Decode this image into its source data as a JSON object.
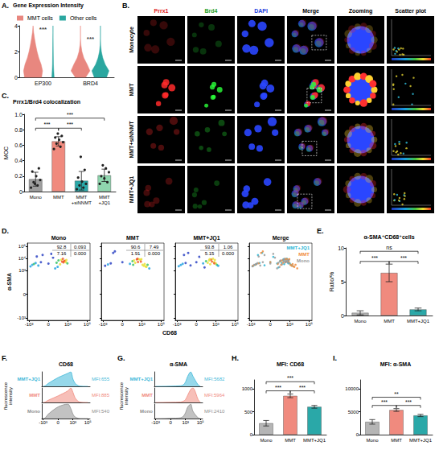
{
  "chart_data": [
    {
      "type": "violin",
      "panel": "A.",
      "title": "Gene Expression Intensity",
      "categories": [
        "EP300",
        "BRD4"
      ],
      "ylim": [
        0,
        4
      ],
      "yticks": [
        0,
        2,
        4
      ],
      "y_grid": [
        0,
        0.5,
        1,
        1.5,
        2,
        2.5,
        3,
        3.5,
        4
      ],
      "legend": "top",
      "series": [
        {
          "name": "MMT cells",
          "color": "#E8877F",
          "density": [
            [
              0.9,
              1.0,
              0.85,
              0.6,
              0.42,
              0.28,
              0.16,
              0.06,
              0
            ],
            [
              0.55,
              1.0,
              0.7,
              0.35,
              0.15,
              0.05,
              0,
              0,
              0
            ]
          ]
        },
        {
          "name": "Other cells",
          "color": "#2BA7A0",
          "density": [
            [
              0.12,
              0.08,
              0.05,
              0.04,
              0.03,
              0.02,
              0.01,
              0,
              0
            ],
            [
              0.65,
              0.9,
              0.5,
              0.25,
              0.1,
              0.03,
              0,
              0,
              0
            ]
          ]
        }
      ],
      "annotations": [
        {
          "category": "EP300",
          "y": 3.75,
          "text": "***"
        },
        {
          "category": "BRD4",
          "y": 3.0,
          "text": "***"
        }
      ]
    },
    {
      "type": "bar",
      "panel": "C.",
      "title": "Prrx1/Brd4 colocalization",
      "y_label": "MOC",
      "categories": [
        "Mono",
        "MMT",
        "MMT +siNNMT",
        "MMT +JQ1"
      ],
      "values": [
        0.16,
        0.65,
        0.14,
        0.21
      ],
      "errors": [
        0.09,
        0.06,
        0.12,
        0.08
      ],
      "colors": [
        "#9E9E9E",
        "#F08A7E",
        "#2AA8A8",
        "#8FD6AE"
      ],
      "points": [
        [
          0.05,
          0.08,
          0.12,
          0.15,
          0.2,
          0.26,
          0.3,
          0.1
        ],
        [
          0.55,
          0.58,
          0.62,
          0.64,
          0.67,
          0.7,
          0.72,
          0.75
        ],
        [
          0.03,
          0.05,
          0.08,
          0.1,
          0.13,
          0.18,
          0.28,
          0.45
        ],
        [
          0.1,
          0.12,
          0.17,
          0.2,
          0.25,
          0.3,
          0.34
        ]
      ],
      "ylim": [
        0,
        1
      ],
      "yticks": [
        0,
        0.2,
        0.4,
        0.6,
        0.8,
        {
          "value": 1,
          "label": "1.0"
        }
      ],
      "brackets": [
        {
          "from": "Mono",
          "to": "MMT",
          "y": 0.82,
          "label": "***"
        },
        {
          "from": "MMT",
          "to": "MMT +siNNMT",
          "y": 0.82,
          "label": "***"
        },
        {
          "from": "Mono",
          "to": "MMT +JQ1",
          "y": 0.95,
          "label": "***"
        }
      ]
    },
    {
      "type": "flow_scatter",
      "panel": "D.",
      "x_label": "CD68",
      "y_label": "α-SMA",
      "xlim": [
        -1500,
        200000
      ],
      "ylim": [
        -1500,
        200000
      ],
      "xticks": [
        {
          "value": -1000,
          "label": "-10³"
        },
        0,
        {
          "value": 1000,
          "label": "10³"
        },
        {
          "value": 100000,
          "label": "10⁵"
        }
      ],
      "yticks": [
        {
          "value": -1000,
          "label": "-10³"
        },
        0,
        {
          "value": 1000,
          "label": "10³"
        },
        {
          "value": 10000,
          "label": "10⁴"
        },
        {
          "value": 100000,
          "label": "10⁵"
        }
      ],
      "plots": [
        {
          "title": "Mono",
          "quadrants": {
            "values": [
              92.8,
              0.093,
              7.16,
              0
            ],
            "value_labels": [
              "92.8",
              "0.093",
              "7.16",
              "0.000"
            ]
          },
          "x": [
            -700,
            -450,
            -300,
            -200,
            -100,
            -50,
            0,
            20,
            60,
            100,
            150,
            200,
            250,
            300,
            350,
            400,
            500,
            600,
            700,
            900,
            -30,
            80,
            -150,
            10,
            40
          ],
          "y": [
            2200,
            3000,
            3500,
            4200,
            2600,
            5000,
            3800,
            12000,
            4500,
            7000,
            3300,
            8000,
            5500,
            9500,
            4800,
            6000,
            6500,
            5000,
            7500,
            4000,
            20000,
            2000,
            15000,
            25000,
            1500
          ]
        },
        {
          "title": "MMT",
          "tick_labels": "x",
          "quadrants": {
            "values": [
              90.6,
              7.49,
              1.91,
              0
            ],
            "value_labels": [
              "90.6",
              "7.49",
              "1.91",
              "0.000"
            ]
          },
          "x": [
            -600,
            -300,
            -150,
            0,
            50,
            100,
            150,
            200,
            300,
            400,
            500,
            700,
            900,
            1200,
            1600,
            2000,
            3000,
            4000,
            6000,
            -50,
            120,
            -80,
            800,
            2500,
            350
          ],
          "y": [
            2500,
            3200,
            4000,
            5000,
            3600,
            6000,
            7000,
            4500,
            8500,
            5200,
            9000,
            8000,
            9000,
            3000,
            2500,
            3500,
            2000,
            3000,
            1500,
            40000,
            3000,
            30000,
            5500,
            2200,
            9500
          ]
        },
        {
          "title": "MMT+JQ1",
          "tick_labels": "x",
          "quadrants": {
            "values": [
              93.8,
              1.06,
              5.15,
              0
            ],
            "value_labels": [
              "93.8",
              "1.06",
              "5.15",
              "0.000"
            ]
          },
          "x": [
            -650,
            -400,
            -250,
            -120,
            -30,
            0,
            40,
            90,
            140,
            200,
            260,
            320,
            400,
            500,
            650,
            800,
            1000,
            1300,
            -60,
            60,
            -180,
            230,
            700,
            1800,
            10
          ],
          "y": [
            2300,
            2900,
            3600,
            4300,
            2700,
            5000,
            3900,
            6000,
            4400,
            7200,
            3400,
            8200,
            5600,
            9800,
            5000,
            7500,
            4000,
            3000,
            30000,
            1800,
            20000,
            9000,
            4000,
            2500,
            14000
          ]
        }
      ],
      "merge": {
        "title": "Merge",
        "tick_labels": "x",
        "legend": "top-right",
        "series": [
          {
            "name": "MMT+JQ1",
            "color": "#29B6D6"
          },
          {
            "name": "MMT",
            "color": "#F08C3C"
          },
          {
            "name": "Mono",
            "color": "#9A9A9A"
          }
        ]
      }
    },
    {
      "type": "bar",
      "panel": "E.",
      "title": "α-SMA⁺CD68⁺cells",
      "y_label": "Ratio/%",
      "categories": [
        "Mono",
        "MMT",
        "MMT+JQ1"
      ],
      "values": [
        0.4,
        6.3,
        0.9
      ],
      "errors": [
        0.3,
        1.3,
        0.2
      ],
      "colors": [
        "#B5B5B5",
        "#F08A7E",
        "#2AA8A8"
      ],
      "ylim": [
        0,
        10
      ],
      "yticks": [
        0,
        5,
        10
      ],
      "brackets": [
        {
          "from": "Mono",
          "to": "MMT",
          "y": 8.0,
          "label": "***"
        },
        {
          "from": "MMT",
          "to": "MMT+JQ1",
          "y": 8.0,
          "label": "***"
        },
        {
          "from": "Mono",
          "to": "MMT+JQ1",
          "y": 9.5,
          "label": "ns"
        }
      ]
    },
    {
      "type": "histogram",
      "panel": "F.",
      "title": "CD68",
      "y_label": "fluorescence intensity",
      "tick_labels": "x",
      "x": [
        -1000,
        -500,
        -200,
        0,
        200,
        500,
        1000,
        2000,
        5000,
        10000,
        50000,
        100000
      ],
      "xlim": [
        -1500,
        200000
      ],
      "xticks": [
        {
          "value": -1000,
          "label": "-10³"
        },
        0,
        {
          "value": 1000,
          "label": "10³"
        },
        {
          "value": 100000,
          "label": "10⁵"
        }
      ],
      "ylim": [
        0,
        1
      ],
      "series": [
        {
          "name": "MMT+JQ1",
          "color": "#3FB8D8",
          "values": [
            0,
            0.04,
            0.2,
            0.6,
            0.9,
            1.0,
            0.5,
            0.2,
            0.05,
            0.01,
            0,
            0
          ],
          "annotation": "MFI:655"
        },
        {
          "name": "MMT",
          "color": "#F08A7E",
          "values": [
            0,
            0.03,
            0.15,
            0.45,
            0.8,
            1.0,
            0.7,
            0.3,
            0.08,
            0.02,
            0,
            0
          ],
          "annotation": "MFI:885"
        },
        {
          "name": "Mono",
          "color": "#8F8F8F",
          "values": [
            0,
            0.05,
            0.3,
            0.8,
            1.0,
            0.7,
            0.3,
            0.1,
            0.02,
            0,
            0,
            0
          ],
          "annotation": "MFI:540"
        }
      ]
    },
    {
      "type": "histogram",
      "panel": "G.",
      "title": "α-SMA",
      "y_label": "fluorescence intensity",
      "tick_labels": "x",
      "x": [
        -1000,
        -500,
        -200,
        0,
        200,
        500,
        1000,
        2000,
        5000,
        10000,
        50000,
        100000
      ],
      "xlim": [
        -1500,
        200000
      ],
      "xticks": [
        {
          "value": -1000,
          "label": "-10³"
        },
        0,
        {
          "value": 1000,
          "label": "10³"
        },
        {
          "value": 100000,
          "label": "10⁵"
        }
      ],
      "ylim": [
        0,
        1
      ],
      "series": [
        {
          "name": "MMT+JQ1",
          "color": "#3FB8D8",
          "values": [
            0,
            0,
            0,
            0.01,
            0.04,
            0.1,
            0.3,
            0.7,
            1.0,
            0.7,
            0.1,
            0
          ],
          "annotation": "MFI:5682"
        },
        {
          "name": "MMT",
          "color": "#F08A7E",
          "values": [
            0,
            0,
            0,
            0.01,
            0.03,
            0.08,
            0.2,
            0.5,
            0.9,
            1.0,
            0.2,
            0
          ],
          "annotation": "MFI:5964"
        },
        {
          "name": "Mono",
          "color": "#8F8F8F",
          "values": [
            0,
            0,
            0,
            0.02,
            0.05,
            0.15,
            0.4,
            0.8,
            1.0,
            0.5,
            0.05,
            0
          ],
          "annotation": "MFI:2410"
        }
      ]
    },
    {
      "type": "bar",
      "panel": "H.",
      "title": "MFI: CD68",
      "categories": [
        "Mono",
        "MMT",
        "MMT+JQ1"
      ],
      "values": [
        250,
        850,
        610
      ],
      "errors": [
        60,
        40,
        30
      ],
      "colors": [
        "#B5B5B5",
        "#F08A7E",
        "#2AA8A8"
      ],
      "ylim": [
        0,
        1200
      ],
      "yticks": [
        0,
        500,
        1000
      ],
      "brackets": [
        {
          "from": "Mono",
          "to": "MMT",
          "y": 960,
          "label": "***"
        },
        {
          "from": "MMT",
          "to": "MMT+JQ1",
          "y": 960,
          "label": "***"
        },
        {
          "from": "Mono",
          "to": "MMT+JQ1",
          "y": 1160,
          "label": "***"
        }
      ]
    },
    {
      "type": "bar",
      "panel": "I.",
      "title": "MFI: α-SMA",
      "categories": [
        "Mono",
        "MMT",
        "MMT+JQ1"
      ],
      "values": [
        2800,
        5400,
        4200
      ],
      "errors": [
        500,
        300,
        250
      ],
      "colors": [
        "#B5B5B5",
        "#F08A7E",
        "#2AA8A8"
      ],
      "ylim": [
        0,
        12000
      ],
      "yticks": [
        0,
        5000,
        10000
      ],
      "brackets": [
        {
          "from": "Mono",
          "to": "MMT",
          "y": 6400,
          "label": "***"
        },
        {
          "from": "MMT",
          "to": "MMT+JQ1",
          "y": 6400,
          "label": "***"
        },
        {
          "from": "Mono",
          "to": "MMT+JQ1",
          "y": 8200,
          "label": "**"
        }
      ]
    }
  ],
  "image_panel": {
    "panel": "B.",
    "columns": [
      {
        "label": "Prrx1",
        "color": "#E02020"
      },
      {
        "label": "Brd4",
        "color": "#1FA01F"
      },
      {
        "label": "DAPI",
        "color": "#2040E0"
      },
      {
        "label": "Merge"
      },
      {
        "label": "Zooming"
      },
      {
        "label": "Scatter plot"
      }
    ],
    "rows": [
      "Monocyte",
      "MMT",
      "MMT+siNNMT",
      "MMT+JQ1"
    ]
  }
}
